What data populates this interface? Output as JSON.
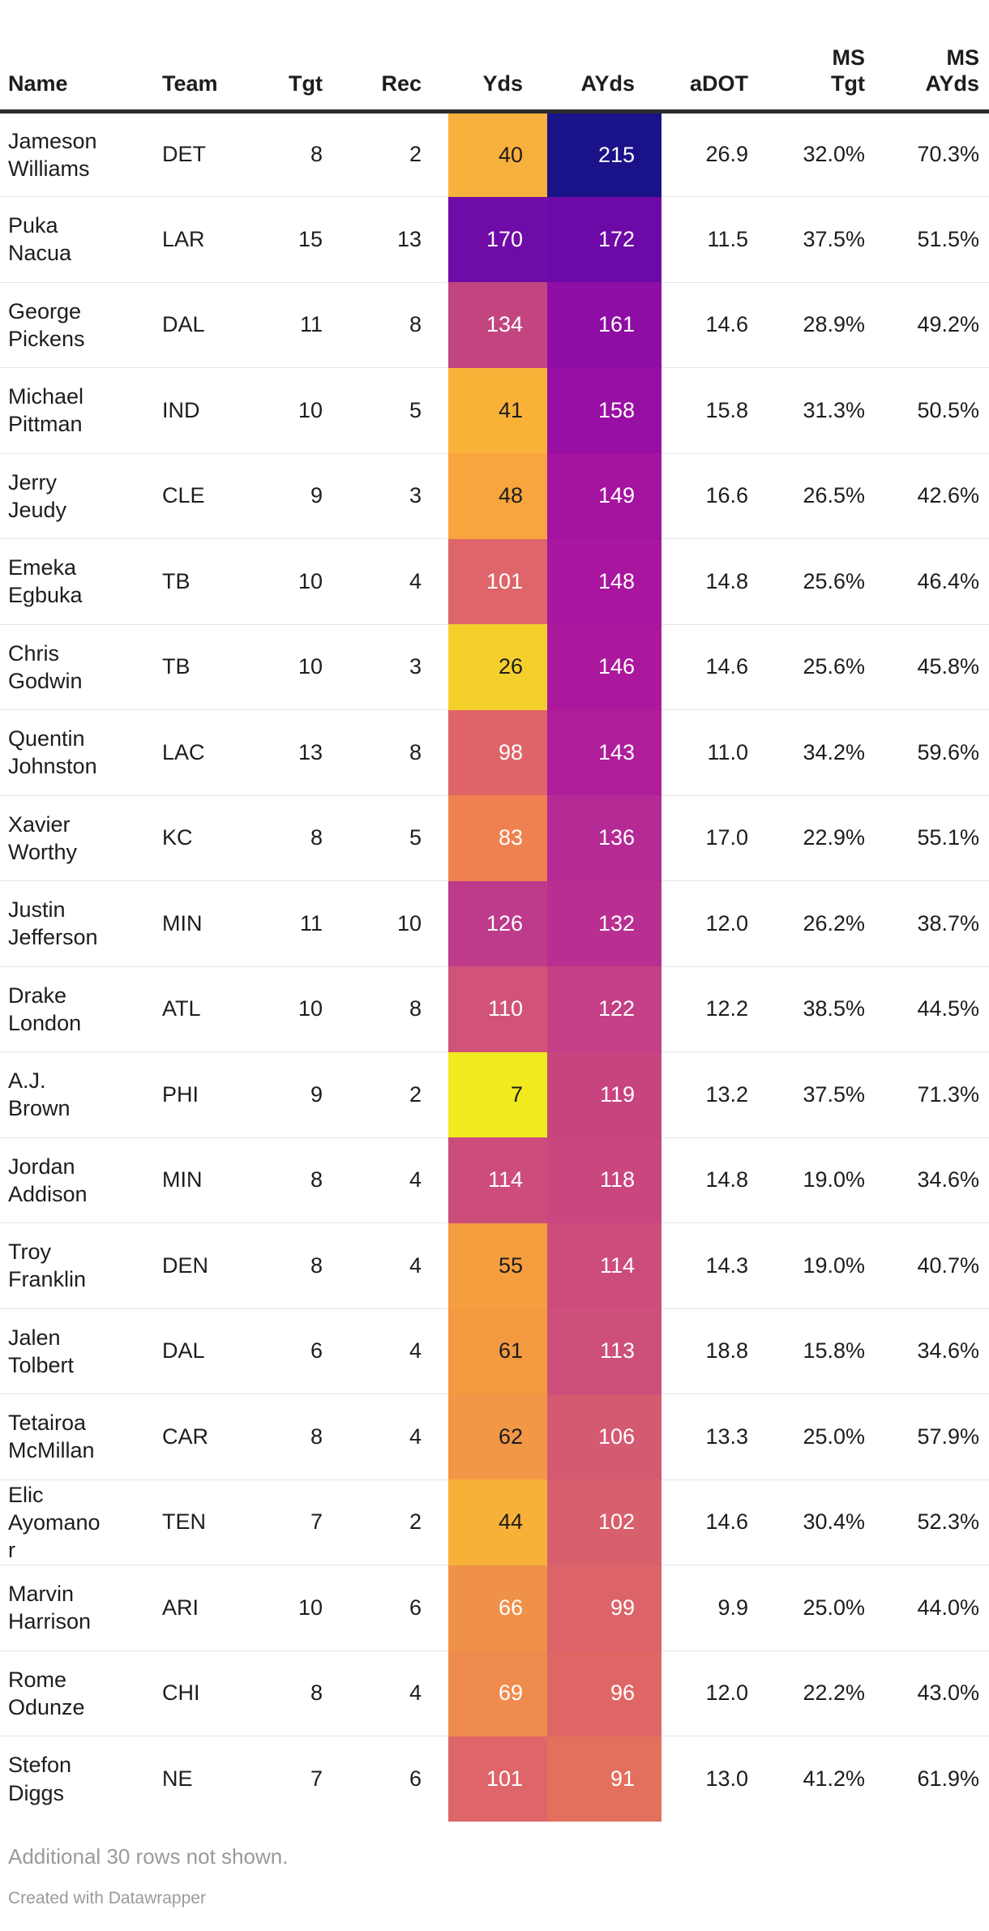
{
  "header_labels": [
    "Name",
    "Team",
    "Tgt",
    "Rec",
    "Yds",
    "AYds",
    "aDOT",
    "MS\nTgt",
    "MS\nAYds"
  ],
  "footer": {
    "note": "Additional 30 rows not shown.",
    "attribution": "Created with Datawrapper"
  },
  "colors": {
    "background": "#ffffff",
    "text": "#1d1d1d",
    "muted_text": "#9a9a9a",
    "header_border": "#2b2b2b",
    "row_border": "#e6e6e6",
    "heat_low": "#f1ea1f",
    "heat_high": "#1a1289"
  },
  "chart_data": {
    "type": "table",
    "columns": [
      "Name",
      "Team",
      "Tgt",
      "Rec",
      "Yds",
      "AYds",
      "aDOT",
      "MS Tgt",
      "MS AYds"
    ],
    "heat_columns": [
      "Yds",
      "AYds"
    ],
    "heat_scale": {
      "palette": "plasma-reversed",
      "description": "yellow = low value, orange/pink = mid, purple = high, navy = max",
      "low_color": "#f1ea1f",
      "high_color": "#1a1289"
    },
    "rows": [
      {
        "name": "Jameson Williams",
        "team": "DET",
        "tgt": 8,
        "rec": 2,
        "yds": 40,
        "ayds": 215,
        "adot": "26.9",
        "ms_tgt": "32.0%",
        "ms_ayds": "70.3%",
        "yds_bg": "#f8b13c",
        "yds_fg": "#1d1d1d",
        "ayds_bg": "#1a1289",
        "ayds_fg": "#ffffff"
      },
      {
        "name": "Puka Nacua",
        "team": "LAR",
        "tgt": 15,
        "rec": 13,
        "yds": 170,
        "ayds": 172,
        "adot": "11.5",
        "ms_tgt": "37.5%",
        "ms_ayds": "51.5%",
        "yds_bg": "#6f0ba6",
        "yds_fg": "#ffffff",
        "ayds_bg": "#6d09a6",
        "ayds_fg": "#ffffff"
      },
      {
        "name": "George Pickens",
        "team": "DAL",
        "tgt": 11,
        "rec": 8,
        "yds": 134,
        "ayds": 161,
        "adot": "14.6",
        "ms_tgt": "28.9%",
        "ms_ayds": "49.2%",
        "yds_bg": "#c24580",
        "yds_fg": "#ffffff",
        "ayds_bg": "#8e0da4",
        "ayds_fg": "#ffffff"
      },
      {
        "name": "Michael Pittman",
        "team": "IND",
        "tgt": 10,
        "rec": 5,
        "yds": 41,
        "ayds": 158,
        "adot": "15.8",
        "ms_tgt": "31.3%",
        "ms_ayds": "50.5%",
        "yds_bg": "#f9b138",
        "yds_fg": "#1d1d1d",
        "ayds_bg": "#9810a3",
        "ayds_fg": "#ffffff"
      },
      {
        "name": "Jerry Jeudy",
        "team": "CLE",
        "tgt": 9,
        "rec": 3,
        "yds": 48,
        "ayds": 149,
        "adot": "16.6",
        "ms_tgt": "26.5%",
        "ms_ayds": "42.6%",
        "yds_bg": "#f8a53d",
        "yds_fg": "#1d1d1d",
        "ayds_bg": "#a514a0",
        "ayds_fg": "#ffffff"
      },
      {
        "name": "Emeka Egbuka",
        "team": "TB",
        "tgt": 10,
        "rec": 4,
        "yds": 101,
        "ayds": 148,
        "adot": "14.8",
        "ms_tgt": "25.6%",
        "ms_ayds": "46.4%",
        "yds_bg": "#de666a",
        "yds_fg": "#ffffff",
        "ayds_bg": "#a8169f",
        "ayds_fg": "#ffffff"
      },
      {
        "name": "Chris Godwin",
        "team": "TB",
        "tgt": 10,
        "rec": 3,
        "yds": 26,
        "ayds": 146,
        "adot": "14.6",
        "ms_tgt": "25.6%",
        "ms_ayds": "45.8%",
        "yds_bg": "#f5d02c",
        "yds_fg": "#1d1d1d",
        "ayds_bg": "#ab189d",
        "ayds_fg": "#ffffff"
      },
      {
        "name": "Quentin Johnston",
        "team": "LAC",
        "tgt": 13,
        "rec": 8,
        "yds": 98,
        "ayds": 143,
        "adot": "11.0",
        "ms_tgt": "34.2%",
        "ms_ayds": "59.6%",
        "yds_bg": "#df6467",
        "yds_fg": "#ffffff",
        "ayds_bg": "#af1d9a",
        "ayds_fg": "#ffffff"
      },
      {
        "name": "Xavier Worthy",
        "team": "KC",
        "tgt": 8,
        "rec": 5,
        "yds": 83,
        "ayds": 136,
        "adot": "17.0",
        "ms_tgt": "22.9%",
        "ms_ayds": "55.1%",
        "yds_bg": "#ef8150",
        "yds_fg": "#ffffff",
        "ayds_bg": "#b52a95",
        "ayds_fg": "#ffffff"
      },
      {
        "name": "Justin Jefferson",
        "team": "MIN",
        "tgt": 11,
        "rec": 10,
        "yds": 126,
        "ayds": 132,
        "adot": "12.0",
        "ms_tgt": "26.2%",
        "ms_ayds": "38.7%",
        "yds_bg": "#be3a8a",
        "yds_fg": "#ffffff",
        "ayds_bg": "#b92f91",
        "ayds_fg": "#ffffff"
      },
      {
        "name": "Drake London",
        "team": "ATL",
        "tgt": 10,
        "rec": 8,
        "yds": 110,
        "ayds": 122,
        "adot": "12.2",
        "ms_tgt": "38.5%",
        "ms_ayds": "44.5%",
        "yds_bg": "#d15377",
        "yds_fg": "#ffffff",
        "ayds_bg": "#c43f85",
        "ayds_fg": "#ffffff"
      },
      {
        "name": "A.J. Brown",
        "team": "PHI",
        "tgt": 9,
        "rec": 2,
        "yds": 7,
        "ayds": 119,
        "adot": "13.2",
        "ms_tgt": "37.5%",
        "ms_ayds": "71.3%",
        "yds_bg": "#f1ea1f",
        "yds_fg": "#1d1d1d",
        "ayds_bg": "#c8447f",
        "ayds_fg": "#ffffff"
      },
      {
        "name": "Jordan Addison",
        "team": "MIN",
        "tgt": 8,
        "rec": 4,
        "yds": 114,
        "ayds": 118,
        "adot": "14.8",
        "ms_tgt": "19.0%",
        "ms_ayds": "34.6%",
        "yds_bg": "#cc4d7c",
        "yds_fg": "#ffffff",
        "ayds_bg": "#c9467f",
        "ayds_fg": "#ffffff"
      },
      {
        "name": "Troy Franklin",
        "team": "DEN",
        "tgt": 8,
        "rec": 4,
        "yds": 55,
        "ayds": 114,
        "adot": "14.3",
        "ms_tgt": "19.0%",
        "ms_ayds": "40.7%",
        "yds_bg": "#f49e40",
        "yds_fg": "#1d1d1d",
        "ayds_bg": "#cc4d7c",
        "ayds_fg": "#ffffff"
      },
      {
        "name": "Jalen Tolbert",
        "team": "DAL",
        "tgt": 6,
        "rec": 4,
        "yds": 61,
        "ayds": 113,
        "adot": "18.8",
        "ms_tgt": "15.8%",
        "ms_ayds": "34.6%",
        "yds_bg": "#f3993f",
        "yds_fg": "#1d1d1d",
        "ayds_bg": "#cd4f7b",
        "ayds_fg": "#ffffff"
      },
      {
        "name": "Tetairoa McMillan",
        "team": "CAR",
        "tgt": 8,
        "rec": 4,
        "yds": 62,
        "ayds": 106,
        "adot": "13.3",
        "ms_tgt": "25.0%",
        "ms_ayds": "57.9%",
        "yds_bg": "#f29745",
        "yds_fg": "#1d1d1d",
        "ayds_bg": "#d45a72",
        "ayds_fg": "#ffffff"
      },
      {
        "name": "Elic Ayomanor",
        "team": "TEN",
        "tgt": 7,
        "rec": 2,
        "yds": 44,
        "ayds": 102,
        "adot": "14.6",
        "ms_tgt": "30.4%",
        "ms_ayds": "52.3%",
        "yds_bg": "#f8b138",
        "yds_fg": "#1d1d1d",
        "ayds_bg": "#d8606c",
        "ayds_fg": "#ffffff"
      },
      {
        "name": "Marvin Harrison",
        "team": "ARI",
        "tgt": 10,
        "rec": 6,
        "yds": 66,
        "ayds": 99,
        "adot": "9.9",
        "ms_tgt": "25.0%",
        "ms_ayds": "44.0%",
        "yds_bg": "#f0914a",
        "yds_fg": "#ffffff",
        "ayds_bg": "#db6369",
        "ayds_fg": "#ffffff"
      },
      {
        "name": "Rome Odunze",
        "team": "CHI",
        "tgt": 8,
        "rec": 4,
        "yds": 69,
        "ayds": 96,
        "adot": "12.0",
        "ms_tgt": "22.2%",
        "ms_ayds": "43.0%",
        "yds_bg": "#ef8c4d",
        "yds_fg": "#ffffff",
        "ayds_bg": "#de6765",
        "ayds_fg": "#ffffff"
      },
      {
        "name": "Stefon Diggs",
        "team": "NE",
        "tgt": 7,
        "rec": 6,
        "yds": 101,
        "ayds": 91,
        "adot": "13.0",
        "ms_tgt": "41.2%",
        "ms_ayds": "61.9%",
        "yds_bg": "#de666a",
        "yds_fg": "#ffffff",
        "ayds_bg": "#e3705c",
        "ayds_fg": "#ffffff"
      }
    ]
  }
}
